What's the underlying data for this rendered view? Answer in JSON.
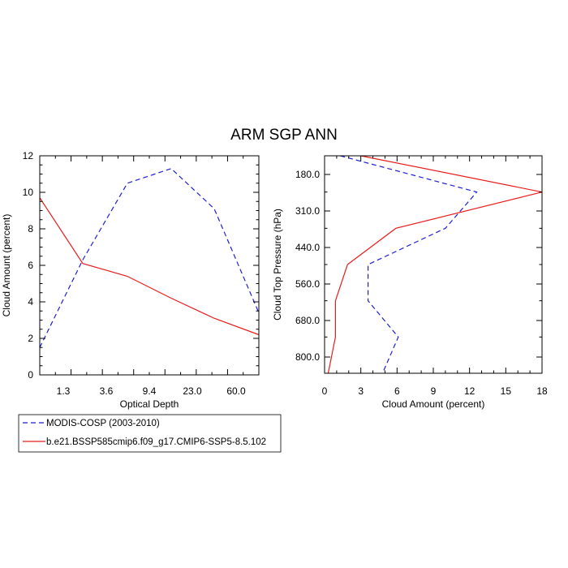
{
  "title": "ARM SGP ANN",
  "colors": {
    "obs": "#1f1fd6",
    "model": "#e81d1d",
    "axis": "#000000"
  },
  "legend": {
    "entries": [
      {
        "label": "MODIS-COSP (2003-2010)",
        "color": "#1f1fd6",
        "style": "dashed"
      },
      {
        "label": "b.e21.BSSP585cmip6.f09_g17.CMIP6-SSP5-8.5.102",
        "color": "#e81d1d",
        "style": "solid"
      }
    ]
  },
  "chart_data": [
    {
      "type": "line",
      "xlabel": "Optical Depth",
      "ylabel": "Cloud Amount (percent)",
      "xticks": [
        "1.3",
        "3.6",
        "9.4",
        "23.0",
        "60.0"
      ],
      "ylim": [
        0,
        12
      ],
      "yticks": [
        0,
        2,
        4,
        6,
        8,
        10,
        12
      ],
      "x_bins": 7,
      "series": [
        {
          "name": "MODIS-COSP (2003-2010)",
          "color": "#1f1fd6",
          "style": "dashed",
          "values": [
            1.5,
            6.3,
            10.5,
            11.3,
            9.1,
            3.4
          ]
        },
        {
          "name": "b.e21.BSSP585cmip6.f09_g17.CMIP6-SSP5-8.5.102",
          "color": "#e81d1d",
          "style": "solid",
          "values": [
            9.7,
            6.1,
            5.4,
            4.2,
            3.1,
            2.2
          ]
        }
      ]
    },
    {
      "type": "line",
      "xlabel": "Cloud Amount (percent)",
      "ylabel": "Cloud Top Pressure (hPa)",
      "xlim": [
        0,
        18
      ],
      "xticks": [
        0,
        3,
        6,
        9,
        12,
        15,
        18
      ],
      "yticks": [
        "180.0",
        "310.0",
        "440.0",
        "560.0",
        "680.0",
        "800.0"
      ],
      "y_levels": 7,
      "series": [
        {
          "name": "MODIS-COSP (2003-2010)",
          "color": "#1f1fd6",
          "style": "dashed",
          "values": [
            1.3,
            12.6,
            10.0,
            3.6,
            3.6,
            6.1,
            4.8
          ]
        },
        {
          "name": "b.e21.BSSP585cmip6.f09_g17.CMIP6-SSP5-8.5.102",
          "color": "#e81d1d",
          "style": "solid",
          "values": [
            3.0,
            18.0,
            5.9,
            1.9,
            0.9,
            0.9,
            0.3
          ]
        }
      ]
    }
  ]
}
